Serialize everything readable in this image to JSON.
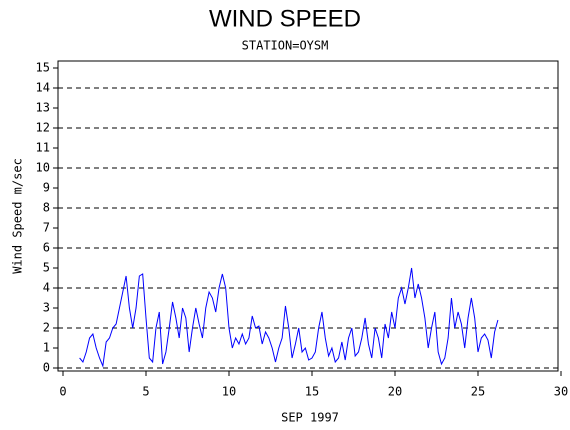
{
  "chart_data": {
    "type": "line",
    "title": "WIND SPEED",
    "subtitle": "STATION=OYSM",
    "xlabel": "SEP 1997",
    "ylabel": "Wind Speed m/sec",
    "xlim": [
      0,
      30
    ],
    "xticks": [
      0,
      5,
      10,
      15,
      20,
      25,
      30
    ],
    "ylim": [
      0,
      15
    ],
    "yticks": [
      0,
      1,
      2,
      3,
      4,
      5,
      6,
      7,
      8,
      9,
      10,
      11,
      12,
      13,
      14,
      15
    ],
    "gridlines": [
      0,
      2,
      4,
      6,
      8,
      10,
      12,
      14
    ],
    "grid_style": "dashed",
    "series": [
      {
        "name": "Wind Speed",
        "color": "#0000ff",
        "x": [
          1.0,
          1.2,
          1.4,
          1.6,
          1.8,
          2.0,
          2.2,
          2.4,
          2.6,
          2.8,
          3.0,
          3.2,
          3.4,
          3.6,
          3.8,
          4.0,
          4.2,
          4.4,
          4.6,
          4.8,
          5.0,
          5.2,
          5.4,
          5.6,
          5.8,
          6.0,
          6.2,
          6.4,
          6.6,
          6.8,
          7.0,
          7.2,
          7.4,
          7.6,
          7.8,
          8.0,
          8.2,
          8.4,
          8.6,
          8.8,
          9.0,
          9.2,
          9.4,
          9.6,
          9.8,
          10.0,
          10.2,
          10.4,
          10.6,
          10.8,
          11.0,
          11.2,
          11.4,
          11.6,
          11.8,
          12.0,
          12.2,
          12.4,
          12.6,
          12.8,
          13.0,
          13.2,
          13.4,
          13.6,
          13.8,
          14.0,
          14.2,
          14.4,
          14.6,
          14.8,
          15.0,
          15.2,
          15.4,
          15.6,
          15.8,
          16.0,
          16.2,
          16.4,
          16.6,
          16.8,
          17.0,
          17.2,
          17.4,
          17.6,
          17.8,
          18.0,
          18.2,
          18.4,
          18.6,
          18.8,
          19.0,
          19.2,
          19.4,
          19.6,
          19.8,
          20.0,
          20.2,
          20.4,
          20.6,
          20.8,
          21.0,
          21.2,
          21.4,
          21.6,
          21.8,
          22.0,
          22.2,
          22.4,
          22.6,
          22.8,
          23.0,
          23.2,
          23.4,
          23.6,
          23.8,
          24.0,
          24.2,
          24.4,
          24.6,
          24.8,
          25.0,
          25.2,
          25.4,
          25.6,
          25.8,
          26.0,
          26.2
        ],
        "values": [
          0.5,
          0.3,
          0.8,
          1.5,
          1.7,
          1.0,
          0.5,
          0.1,
          1.3,
          1.5,
          2.0,
          2.2,
          3.0,
          3.8,
          4.6,
          3.0,
          2.0,
          3.0,
          4.6,
          4.7,
          2.5,
          0.5,
          0.3,
          2.0,
          2.8,
          0.2,
          0.8,
          2.0,
          3.3,
          2.5,
          1.5,
          3.0,
          2.5,
          0.8,
          2.0,
          3.0,
          2.2,
          1.5,
          3.0,
          3.8,
          3.5,
          2.8,
          4.0,
          4.7,
          4.0,
          2.0,
          1.0,
          1.5,
          1.2,
          1.7,
          1.2,
          1.5,
          2.6,
          2.0,
          2.1,
          1.2,
          1.8,
          1.5,
          1.0,
          0.3,
          1.0,
          1.5,
          3.1,
          2.0,
          0.5,
          1.2,
          2.0,
          0.8,
          1.0,
          0.4,
          0.5,
          0.8,
          2.0,
          2.8,
          1.5,
          0.6,
          1.0,
          0.3,
          0.5,
          1.3,
          0.4,
          1.5,
          2.0,
          0.6,
          0.8,
          1.5,
          2.5,
          1.2,
          0.5,
          2.0,
          1.5,
          0.5,
          2.2,
          1.5,
          2.8,
          2.0,
          3.5,
          4.0,
          3.2,
          4.0,
          5.0,
          3.5,
          4.2,
          3.5,
          2.5,
          1.0,
          2.0,
          2.8,
          0.8,
          0.2,
          0.5,
          1.5,
          3.5,
          2.0,
          2.8,
          2.2,
          1.0,
          2.5,
          3.5,
          2.5,
          0.8,
          1.5,
          1.7,
          1.4,
          0.5,
          1.8,
          2.4
        ]
      }
    ]
  }
}
